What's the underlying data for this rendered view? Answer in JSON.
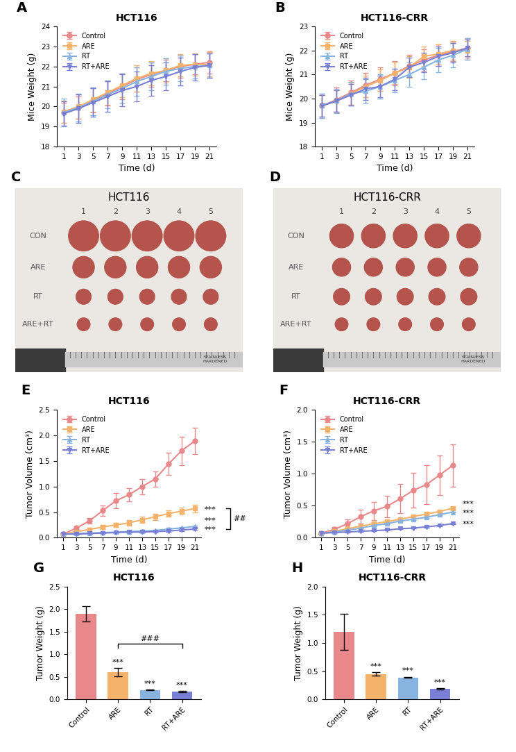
{
  "chart_data": [
    {
      "panel_label": "A",
      "type": "line",
      "title": "HCT116",
      "x_label": "Time (d)",
      "y_label": "Mice Weight (g)",
      "x": [
        1,
        3,
        5,
        7,
        9,
        11,
        13,
        15,
        17,
        19,
        21
      ],
      "xlim": [
        0,
        22
      ],
      "xticks": [
        1,
        3,
        5,
        7,
        9,
        11,
        13,
        15,
        17,
        19,
        21
      ],
      "ylim": [
        18,
        24
      ],
      "yticks": [
        18,
        19,
        20,
        21,
        22,
        23,
        24
      ],
      "legend": "upper left",
      "series": [
        {
          "name": "Control",
          "color": "#E8888A",
          "marker": "circle",
          "values": [
            19.7,
            19.95,
            20.3,
            20.65,
            21.0,
            21.35,
            21.6,
            21.8,
            22.0,
            22.1,
            22.2
          ],
          "error": [
            0.5,
            0.55,
            0.6,
            0.6,
            0.65,
            0.6,
            0.6,
            0.55,
            0.55,
            0.5,
            0.55
          ]
        },
        {
          "name": "ARE",
          "color": "#F5B26B",
          "marker": "square",
          "values": [
            19.75,
            20.0,
            20.35,
            20.7,
            21.05,
            21.4,
            21.65,
            21.8,
            22.05,
            22.1,
            22.1
          ],
          "error": [
            0.55,
            0.6,
            0.6,
            0.6,
            0.6,
            0.65,
            0.6,
            0.6,
            0.55,
            0.55,
            0.6
          ]
        },
        {
          "name": "RT",
          "color": "#86B3E0",
          "marker": "triangle_up",
          "values": [
            19.7,
            19.95,
            20.25,
            20.6,
            20.9,
            21.25,
            21.5,
            21.75,
            21.9,
            22.0,
            22.05
          ],
          "error": [
            0.7,
            0.7,
            0.7,
            0.7,
            0.75,
            0.7,
            0.7,
            0.65,
            0.65,
            0.6,
            0.6
          ]
        },
        {
          "name": "RT+ARE",
          "color": "#7A7FD6",
          "marker": "triangle_down",
          "values": [
            19.65,
            19.9,
            20.2,
            20.5,
            20.8,
            21.0,
            21.3,
            21.5,
            21.75,
            21.95,
            22.05
          ],
          "error": [
            0.6,
            0.7,
            0.7,
            0.75,
            0.8,
            0.75,
            0.75,
            0.7,
            0.7,
            0.65,
            0.6
          ]
        }
      ]
    },
    {
      "panel_label": "B",
      "type": "line",
      "title": "HCT116-CRR",
      "x_label": "Time (d)",
      "y_label": "Mice Weight (g)",
      "x": [
        1,
        3,
        5,
        7,
        9,
        11,
        13,
        15,
        17,
        19,
        21
      ],
      "xlim": [
        0,
        22
      ],
      "xticks": [
        1,
        3,
        5,
        7,
        9,
        11,
        13,
        15,
        17,
        19,
        21
      ],
      "ylim": [
        18,
        23
      ],
      "yticks": [
        18,
        19,
        20,
        21,
        22,
        23
      ],
      "legend": "upper left",
      "series": [
        {
          "name": "Control",
          "color": "#E8888A",
          "marker": "circle",
          "values": [
            19.7,
            19.95,
            20.25,
            20.55,
            20.8,
            21.05,
            21.35,
            21.6,
            21.8,
            21.95,
            22.1
          ],
          "error": [
            0.5,
            0.5,
            0.5,
            0.5,
            0.5,
            0.5,
            0.45,
            0.45,
            0.45,
            0.4,
            0.4
          ]
        },
        {
          "name": "ARE",
          "color": "#F5B26B",
          "marker": "square",
          "values": [
            19.7,
            19.9,
            20.2,
            20.5,
            20.75,
            21.05,
            21.3,
            21.75,
            21.85,
            22.0,
            22.0
          ],
          "error": [
            0.45,
            0.45,
            0.45,
            0.45,
            0.45,
            0.45,
            0.45,
            0.4,
            0.4,
            0.4,
            0.4
          ]
        },
        {
          "name": "RT",
          "color": "#86B3E0",
          "marker": "triangle_up",
          "values": [
            19.7,
            19.9,
            20.2,
            20.3,
            20.5,
            20.75,
            21.0,
            21.3,
            21.6,
            21.8,
            22.05
          ],
          "error": [
            0.5,
            0.5,
            0.5,
            0.5,
            0.5,
            0.5,
            0.5,
            0.5,
            0.5,
            0.5,
            0.45
          ]
        },
        {
          "name": "RT+ARE",
          "color": "#7A7FD6",
          "marker": "triangle_down",
          "values": [
            19.7,
            19.9,
            20.15,
            20.4,
            20.5,
            20.8,
            21.3,
            21.5,
            21.75,
            21.9,
            22.1
          ],
          "error": [
            0.45,
            0.45,
            0.45,
            0.45,
            0.45,
            0.45,
            0.4,
            0.4,
            0.4,
            0.4,
            0.35
          ]
        }
      ]
    },
    {
      "panel_label": "E",
      "type": "line",
      "title": "HCT116",
      "x_label": "Time (d)",
      "y_label": "Tumor Volume (cm³)",
      "x": [
        1,
        3,
        5,
        7,
        9,
        11,
        13,
        15,
        17,
        19,
        21
      ],
      "xlim": [
        0,
        22
      ],
      "xticks": [
        1,
        3,
        5,
        7,
        9,
        11,
        13,
        15,
        17,
        19,
        21
      ],
      "ylim": [
        0,
        2.5
      ],
      "yticks": [
        {
          "value": 0,
          "label": "0.0"
        },
        0.5,
        {
          "value": 1,
          "label": "1.0"
        },
        1.5,
        {
          "value": 2,
          "label": "2.0"
        },
        2.5
      ],
      "legend": "upper left",
      "series": [
        {
          "name": "Control",
          "color": "#E8888A",
          "marker": "circle",
          "values": [
            0.07,
            0.19,
            0.33,
            0.53,
            0.72,
            0.84,
            1.0,
            1.15,
            1.44,
            1.7,
            1.89
          ],
          "error": [
            0.01,
            0.03,
            0.05,
            0.1,
            0.15,
            0.13,
            0.15,
            0.15,
            0.22,
            0.28,
            0.26
          ]
        },
        {
          "name": "ARE",
          "color": "#F5B26B",
          "marker": "square",
          "values": [
            0.07,
            0.12,
            0.16,
            0.21,
            0.25,
            0.29,
            0.35,
            0.41,
            0.47,
            0.52,
            0.57
          ],
          "error": [
            0.01,
            0.02,
            0.03,
            0.04,
            0.04,
            0.05,
            0.06,
            0.06,
            0.06,
            0.07,
            0.07
          ],
          "significance": "***"
        },
        {
          "name": "RT",
          "color": "#86B3E0",
          "marker": "triangle_up",
          "values": [
            0.07,
            0.08,
            0.09,
            0.1,
            0.11,
            0.12,
            0.13,
            0.14,
            0.17,
            0.19,
            0.22
          ],
          "error": [
            0.01,
            0.01,
            0.01,
            0.01,
            0.01,
            0.02,
            0.02,
            0.02,
            0.02,
            0.02,
            0.02
          ],
          "significance": "***"
        },
        {
          "name": "RT+ARE",
          "color": "#7A7FD6",
          "marker": "triangle_down",
          "values": [
            0.07,
            0.07,
            0.08,
            0.09,
            0.1,
            0.11,
            0.11,
            0.12,
            0.13,
            0.15,
            0.17
          ],
          "error": [
            0.01,
            0.01,
            0.01,
            0.01,
            0.01,
            0.01,
            0.01,
            0.01,
            0.02,
            0.02,
            0.02
          ],
          "significance": "***"
        }
      ],
      "brackets": [
        {
          "from": "ARE",
          "to": "RT+ARE",
          "label": "##"
        }
      ]
    },
    {
      "panel_label": "F",
      "type": "line",
      "title": "HCT116-CRR",
      "x_label": "Time (d)",
      "y_label": "Tumor Volume (cm³)",
      "x": [
        1,
        3,
        5,
        7,
        9,
        11,
        13,
        15,
        17,
        19,
        21
      ],
      "xlim": [
        0,
        22
      ],
      "xticks": [
        1,
        3,
        5,
        7,
        9,
        11,
        13,
        15,
        17,
        19,
        21
      ],
      "ylim": [
        0,
        2
      ],
      "yticks": [
        {
          "value": 0,
          "label": "0.0"
        },
        0.5,
        {
          "value": 1,
          "label": "1.0"
        },
        1.5,
        {
          "value": 2,
          "label": "2.0"
        }
      ],
      "legend": "upper left",
      "series": [
        {
          "name": "Control",
          "color": "#E8888A",
          "marker": "circle",
          "values": [
            0.07,
            0.13,
            0.22,
            0.33,
            0.42,
            0.49,
            0.61,
            0.74,
            0.83,
            0.98,
            1.13
          ],
          "error": [
            0.01,
            0.04,
            0.07,
            0.11,
            0.14,
            0.17,
            0.23,
            0.27,
            0.3,
            0.31,
            0.33
          ]
        },
        {
          "name": "ARE",
          "color": "#F5B26B",
          "marker": "square",
          "values": [
            0.07,
            0.1,
            0.14,
            0.18,
            0.22,
            0.25,
            0.29,
            0.33,
            0.37,
            0.41,
            0.46
          ],
          "error": [
            0.01,
            0.01,
            0.02,
            0.02,
            0.02,
            0.02,
            0.02,
            0.02,
            0.02,
            0.02,
            0.02
          ],
          "significance": "***"
        },
        {
          "name": "RT",
          "color": "#86B3E0",
          "marker": "triangle_up",
          "values": [
            0.07,
            0.09,
            0.12,
            0.15,
            0.19,
            0.22,
            0.26,
            0.29,
            0.32,
            0.36,
            0.4
          ],
          "error": [
            0.01,
            0.01,
            0.01,
            0.01,
            0.01,
            0.01,
            0.01,
            0.01,
            0.01,
            0.01,
            0.01
          ],
          "significance": "***"
        },
        {
          "name": "RT+ARE",
          "color": "#7A7FD6",
          "marker": "triangle_down",
          "values": [
            0.07,
            0.08,
            0.09,
            0.1,
            0.11,
            0.12,
            0.14,
            0.15,
            0.17,
            0.19,
            0.22
          ],
          "error": [
            0.01,
            0.01,
            0.01,
            0.01,
            0.01,
            0.01,
            0.01,
            0.01,
            0.01,
            0.01,
            0.01
          ],
          "significance": "***"
        }
      ]
    },
    {
      "panel_label": "G",
      "type": "bar",
      "title": "HCT116",
      "y_label": "Tumor Weight (g)",
      "categories": [
        "Control",
        "ARE",
        "RT",
        "RT+ARE"
      ],
      "values": [
        1.89,
        0.6,
        0.21,
        0.17
      ],
      "error": [
        0.17,
        0.09,
        0.01,
        0.01
      ],
      "colors": [
        "#E8888A",
        "#F5B26B",
        "#86B3E0",
        "#7A7FD6"
      ],
      "significance": [
        null,
        "***",
        "***",
        "***"
      ],
      "ylim": [
        0,
        2.5
      ],
      "yticks": [
        {
          "value": 0,
          "label": "0.0"
        },
        0.5,
        {
          "value": 1,
          "label": "1.0"
        },
        1.5,
        {
          "value": 2,
          "label": "2.0"
        },
        2.5
      ],
      "brackets": [
        {
          "from": "ARE",
          "to": "RT+ARE",
          "label": "###"
        }
      ]
    },
    {
      "panel_label": "H",
      "type": "bar",
      "title": "HCT116-CRR",
      "y_label": "Tumor Weight (g)",
      "categories": [
        "Control",
        "ARE",
        "RT",
        "RT+ARE"
      ],
      "values": [
        1.2,
        0.45,
        0.39,
        0.19
      ],
      "error": [
        0.32,
        0.03,
        0.01,
        0.01
      ],
      "colors": [
        "#E8888A",
        "#F5B26B",
        "#86B3E0",
        "#7A7FD6"
      ],
      "significance": [
        null,
        "***",
        "***",
        "***"
      ],
      "ylim": [
        0,
        2
      ],
      "yticks": [
        {
          "value": 0,
          "label": "0.0"
        },
        0.5,
        {
          "value": 1,
          "label": "1.0"
        },
        1.5,
        {
          "value": 2,
          "label": "2.0"
        }
      ]
    }
  ],
  "photos": [
    {
      "panel_label": "C",
      "title": "HCT116",
      "columns": [
        "1",
        "2",
        "3",
        "4",
        "5"
      ],
      "rows": [
        "CON",
        "ARE",
        "RT",
        "ARE+RT"
      ],
      "ruler_text": [
        "STAINLESS",
        "HARDENED"
      ]
    },
    {
      "panel_label": "D",
      "title": "HCT116-CRR",
      "columns": [
        "1",
        "2",
        "3",
        "4",
        "5"
      ],
      "rows": [
        "CON",
        "ARE",
        "RT",
        "ARE+RT"
      ],
      "ruler_text": [
        "STAINLESS",
        "HARDENED"
      ]
    }
  ]
}
